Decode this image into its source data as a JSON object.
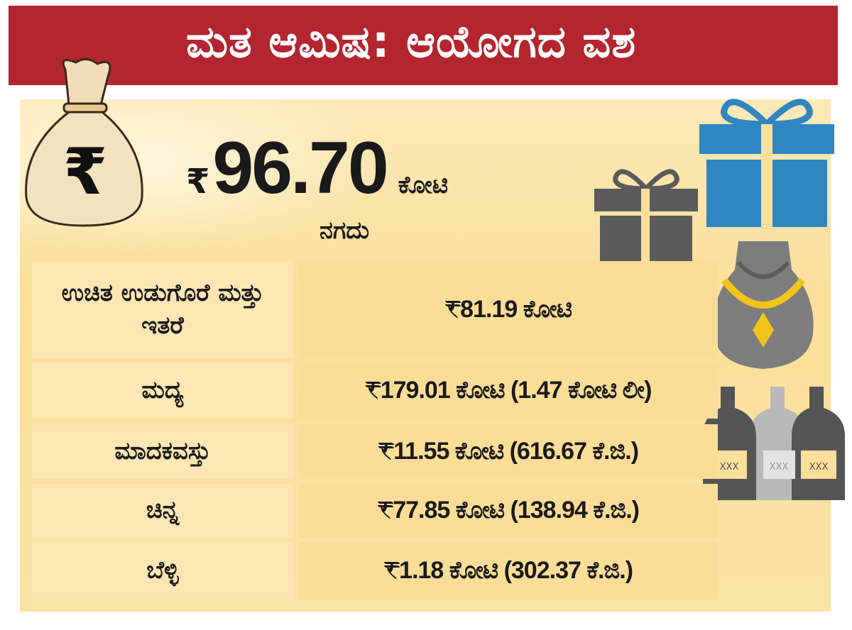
{
  "header": {
    "title": "ಮತ ಆಮಿಷ: ಆಯೋಗದ ವಶ"
  },
  "cash": {
    "symbol": "₹",
    "amount": "96.70",
    "unit": "ಕೋಟಿ",
    "label": "ನಗದು"
  },
  "table": {
    "rows": [
      {
        "item": "ಉಚಿತ ಉಡುಗೊರೆ ಮತ್ತು ಇತರೆ",
        "value": "₹81.19 ಕೋಟಿ"
      },
      {
        "item": "ಮದ್ಯ",
        "value": "₹179.01  ಕೋಟಿ (1.47 ಕೋಟಿ ಲೀ)"
      },
      {
        "item": "ಮಾದಕವಸ್ತು",
        "value": "₹11.55 ಕೋಟಿ (616.67 ಕೆ.ಜಿ.)"
      },
      {
        "item": "ಚಿನ್ನ",
        "value": "₹77.85 ಕೋಟಿ (138.94 ಕೆ.ಜಿ.)"
      },
      {
        "item": "ಬೆಳ್ಳಿ",
        "value": "₹1.18 ಕೋಟಿ (302.37 ಕೆ.ಜಿ.)"
      }
    ]
  },
  "icons": {
    "money_bag_symbol": "₹",
    "bottle_label": "XXX"
  },
  "colors": {
    "banner": "#B3252F",
    "panel": "#FBDF9A",
    "gift_blue": "#2F86C0",
    "gift_grey": "#5B5B5B",
    "gold": "#F2C418"
  }
}
